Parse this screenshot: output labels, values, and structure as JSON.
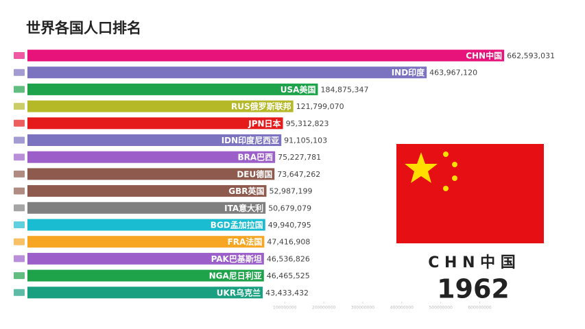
{
  "chart_data": {
    "type": "bar",
    "orientation": "horizontal",
    "title": "世界各国人口排名",
    "categories": [
      "CHN中国",
      "IND印度",
      "USA美国",
      "RUS俄罗斯联邦",
      "JPN日本",
      "IDN印度尼西亚",
      "BRA巴西",
      "DEU德国",
      "GBR英国",
      "ITA意大利",
      "BGD孟加拉国",
      "FRA法国",
      "PAK巴基斯坦",
      "NGA尼日利亚",
      "UKR乌克兰"
    ],
    "values": [
      662593031,
      463967120,
      184875347,
      121799070,
      95312823,
      91105103,
      75227781,
      73647262,
      52987199,
      50679079,
      49940795,
      47416908,
      46536826,
      46465525,
      43433432
    ],
    "value_labels": [
      "662,593,031",
      "463,967,120",
      "184,875,347",
      "121,799,070",
      "95,312,823",
      "91,105,103",
      "75,227,781",
      "73,647,262",
      "52,987,199",
      "50,679,079",
      "49,940,795",
      "47,416,908",
      "46,536,826",
      "46,465,525",
      "43,433,432"
    ],
    "colors": [
      "#e8137a",
      "#7b72c0",
      "#1ea34a",
      "#b5b928",
      "#e51b1b",
      "#7b72c0",
      "#9c5fc9",
      "#8d5a4d",
      "#8d5a4d",
      "#7f7f7f",
      "#19bcd0",
      "#f6a623",
      "#9c5fc9",
      "#1ea34a",
      "#19a080"
    ],
    "xlim": [
      -560000000,
      680000000
    ],
    "xticks": [
      100000000,
      200000000,
      300000000,
      400000000,
      500000000,
      600000000
    ],
    "current_label": "C H N 中 国",
    "year": "1962"
  }
}
